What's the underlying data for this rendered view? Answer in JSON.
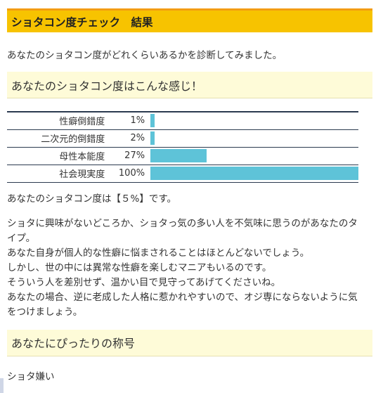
{
  "header": {
    "title": "ショタコン度チェック　結果"
  },
  "intro": "あなたのショタコン度がどれくらいあるかを診断してみました。",
  "section1": {
    "heading": "あなたのショタコン度はこんな感じ！"
  },
  "stats": [
    {
      "label": "性癖倒錯度",
      "percent_text": "1%",
      "value": 1
    },
    {
      "label": "二次元的倒錯度",
      "percent_text": "2%",
      "value": 2
    },
    {
      "label": "母性本能度",
      "percent_text": "27%",
      "value": 27
    },
    {
      "label": "社会現実度",
      "percent_text": "100%",
      "value": 100
    }
  ],
  "bar_color": "#5ec3d8",
  "accent_color": "#f7c300",
  "result_text": "あなたのショタコン度は【５%】です。",
  "description": [
    "ショタに興味がないどころか、ショタっ気の多い人を不気味に思うのがあなたのタ",
    "イプ。",
    "あなた自身が個人的な性癖に悩まされることはほとんどないでしょう。",
    "しかし、世の中には異常な性癖を楽しむマニアもいるのです。",
    "そういう人を差別せず、温かい目で見守ってあげてくださいね。",
    "あなたの場合、逆に老成した人格に惹かれやすいので、オジ専にならないように気",
    "をつけましょう。"
  ],
  "section2": {
    "heading": "あなたにぴったりの称号"
  },
  "title_result": "ショタ嫌い"
}
